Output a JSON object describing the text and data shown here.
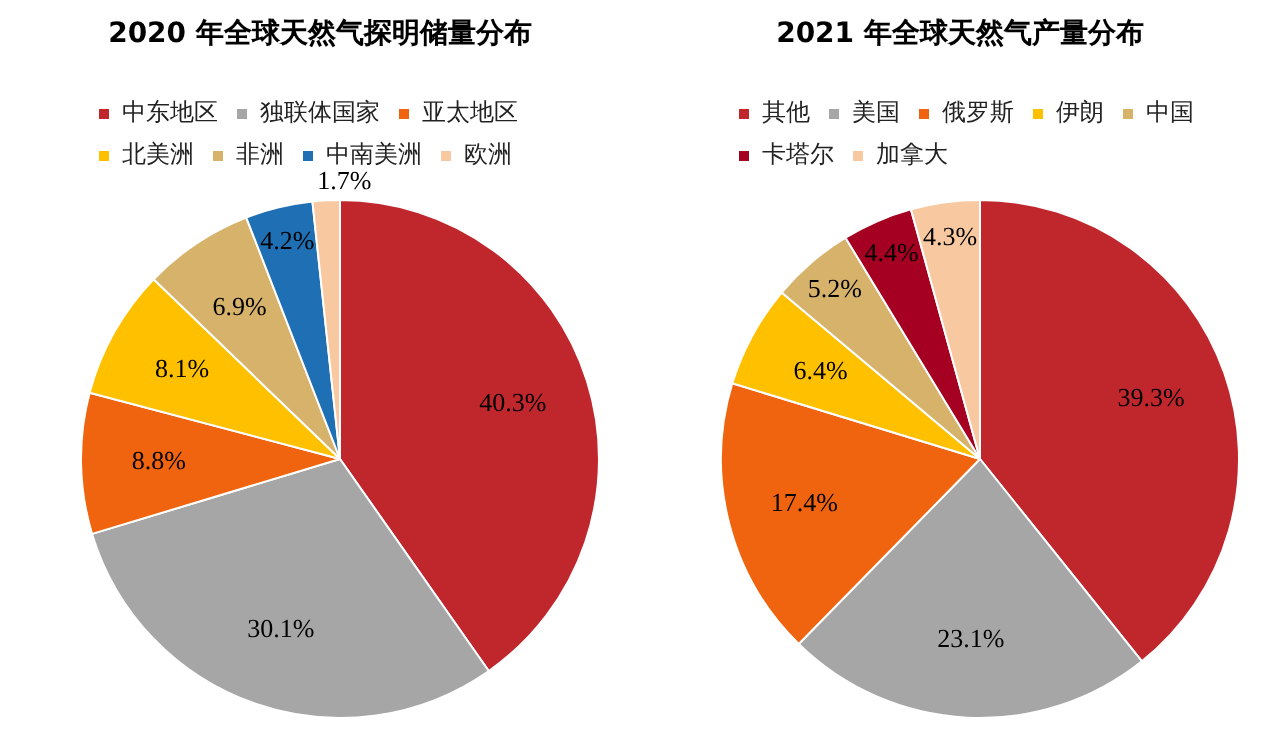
{
  "chart_data": [
    {
      "type": "pie",
      "title": "2020 年全球天然气探明储量分布",
      "categories": [
        "中东地区",
        "独联体国家",
        "亚太地区",
        "北美洲",
        "非洲",
        "中南美洲",
        "欧洲"
      ],
      "values": [
        40.3,
        30.1,
        8.8,
        8.1,
        6.9,
        4.2,
        1.7
      ],
      "colors": [
        "#c0272d",
        "#a6a6a6",
        "#f0640f",
        "#ffc000",
        "#d6b26b",
        "#1f6fb4",
        "#f8c9a0"
      ],
      "legend": "top",
      "value_labels": [
        "40.3%",
        "30.1%",
        "8.8%",
        "8.1%",
        "6.9%",
        "4.2%",
        "1.7%"
      ]
    },
    {
      "type": "pie",
      "title": "2021 年全球天然气产量分布",
      "categories": [
        "其他",
        "美国",
        "俄罗斯",
        "伊朗",
        "中国",
        "卡塔尔",
        "加拿大"
      ],
      "values": [
        39.3,
        23.1,
        17.4,
        6.4,
        5.2,
        4.4,
        4.3
      ],
      "colors": [
        "#c0272d",
        "#a6a6a6",
        "#f0640f",
        "#ffc000",
        "#d6b26b",
        "#a50021",
        "#f8c9a0"
      ],
      "legend": "top",
      "value_labels": [
        "39.3%",
        "23.1%",
        "17.4%",
        "6.4%",
        "5.2%",
        "4.4%",
        "4.3%"
      ]
    }
  ]
}
